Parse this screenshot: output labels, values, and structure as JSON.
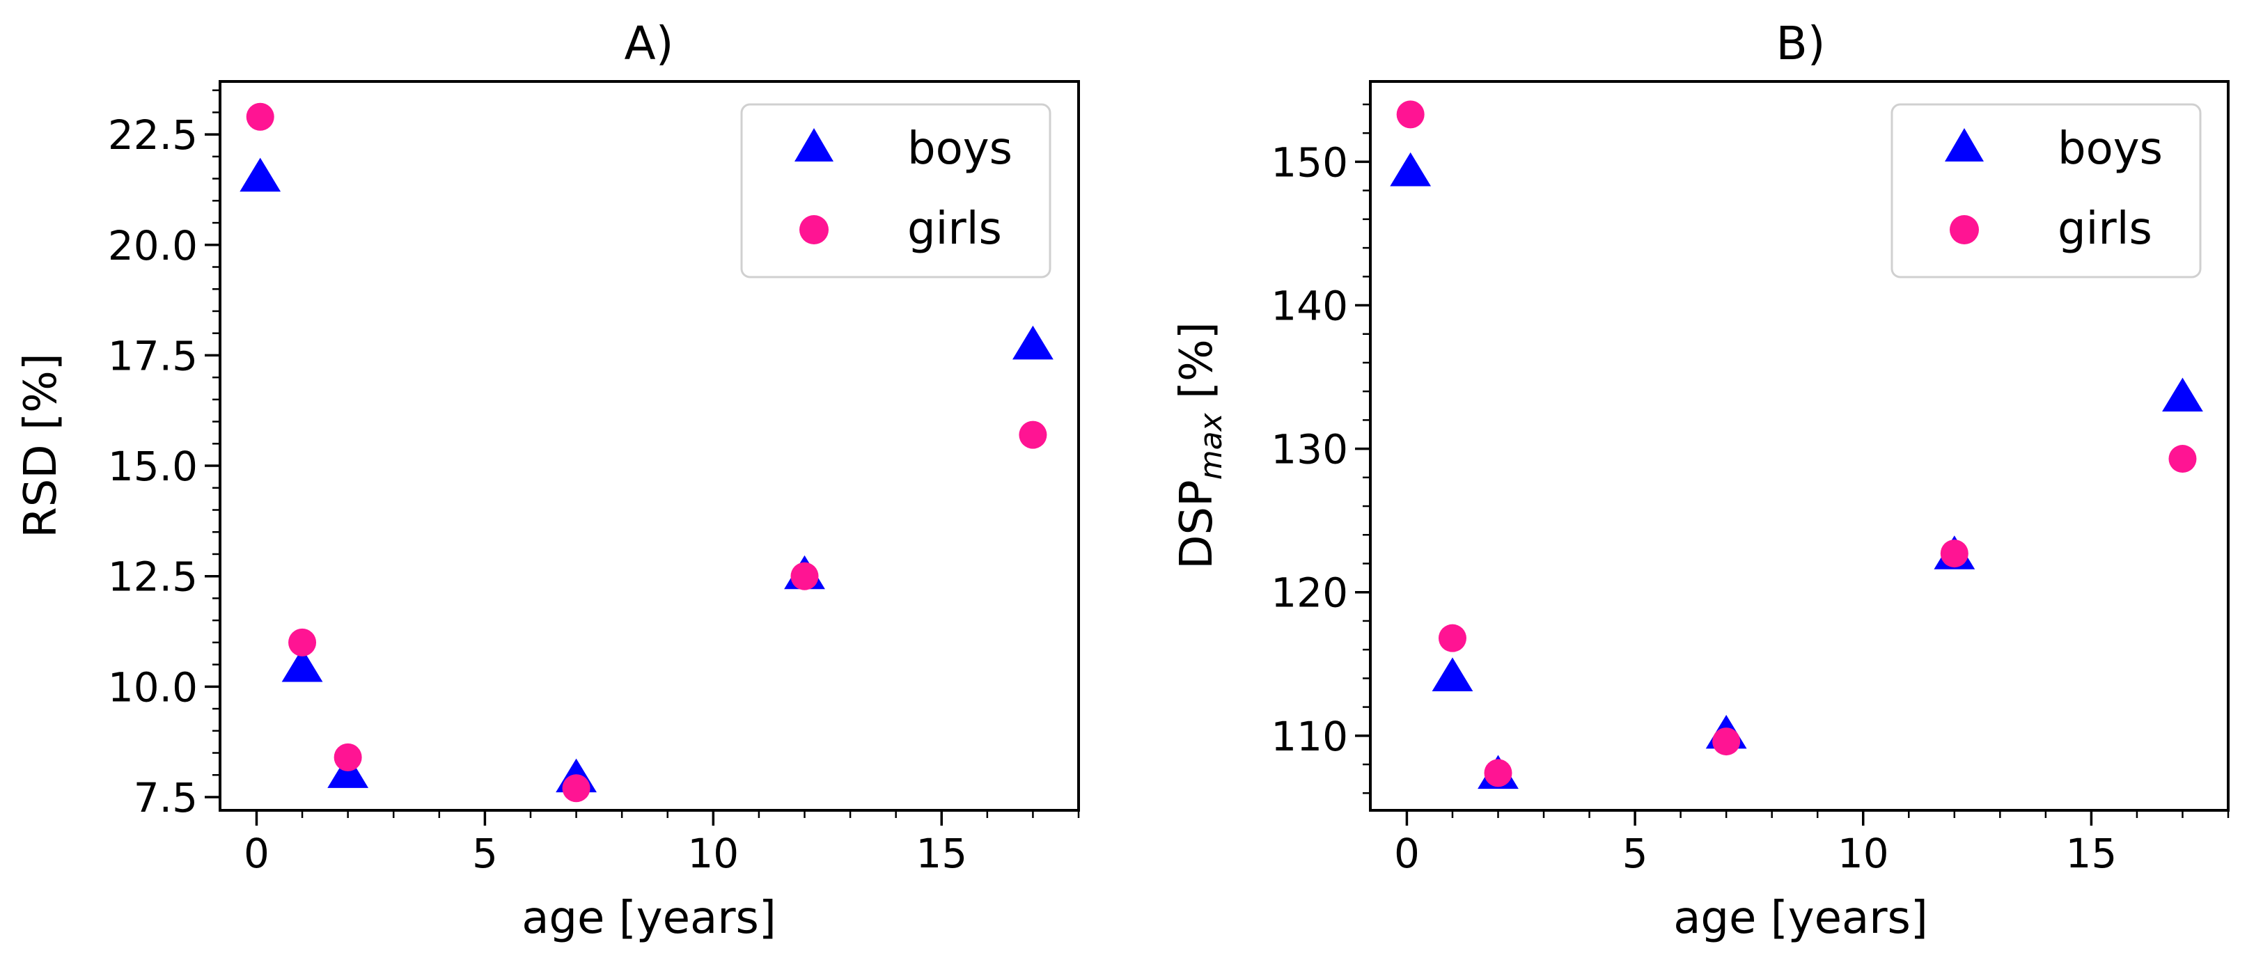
{
  "chart_data": [
    {
      "type": "scatter",
      "title": "A)",
      "xlabel": "age [years]",
      "ylabel": "RSD [%]",
      "xlim": [
        -0.8,
        18.0
      ],
      "ylim": [
        7.2,
        23.7
      ],
      "xticks": [
        0,
        5,
        10,
        15
      ],
      "yticks": [
        7.5,
        10.0,
        12.5,
        15.0,
        17.5,
        20.0,
        22.5
      ],
      "ytick_labels": [
        "7.5",
        "10.0",
        "12.5",
        "15.0",
        "17.5",
        "20.0",
        "22.5"
      ],
      "legend_position": "top-right",
      "series": [
        {
          "name": "boys",
          "marker": "triangle",
          "color": "#0000ff",
          "x": [
            0.08,
            1,
            2,
            7,
            12,
            17
          ],
          "y": [
            21.5,
            10.4,
            8.0,
            7.9,
            12.5,
            17.7
          ]
        },
        {
          "name": "girls",
          "marker": "circle",
          "color": "#ff1493",
          "x": [
            0.08,
            1,
            2,
            7,
            12,
            17
          ],
          "y": [
            22.9,
            11.0,
            8.4,
            7.7,
            12.5,
            15.7
          ]
        }
      ]
    },
    {
      "type": "scatter",
      "title": "B)",
      "xlabel": "age [years]",
      "ylabel_main": "DSP",
      "ylabel_sub": "max",
      "ylabel_tail": " [%]",
      "xlim": [
        -0.8,
        18.0
      ],
      "ylim": [
        104.8,
        155.6
      ],
      "xticks": [
        0,
        5,
        10,
        15
      ],
      "yticks": [
        110,
        120,
        130,
        140,
        150
      ],
      "ytick_labels": [
        "110",
        "120",
        "130",
        "140",
        "150"
      ],
      "legend_position": "top-right",
      "series": [
        {
          "name": "boys",
          "marker": "triangle",
          "color": "#0000ff",
          "x": [
            0.08,
            1,
            2,
            7,
            12,
            17
          ],
          "y": [
            149.2,
            114.0,
            107.2,
            110.0,
            122.5,
            133.5
          ]
        },
        {
          "name": "girls",
          "marker": "circle",
          "color": "#ff1493",
          "x": [
            0.08,
            1,
            2,
            7,
            12,
            17
          ],
          "y": [
            153.3,
            116.8,
            107.4,
            109.6,
            122.7,
            129.3
          ]
        }
      ]
    }
  ]
}
